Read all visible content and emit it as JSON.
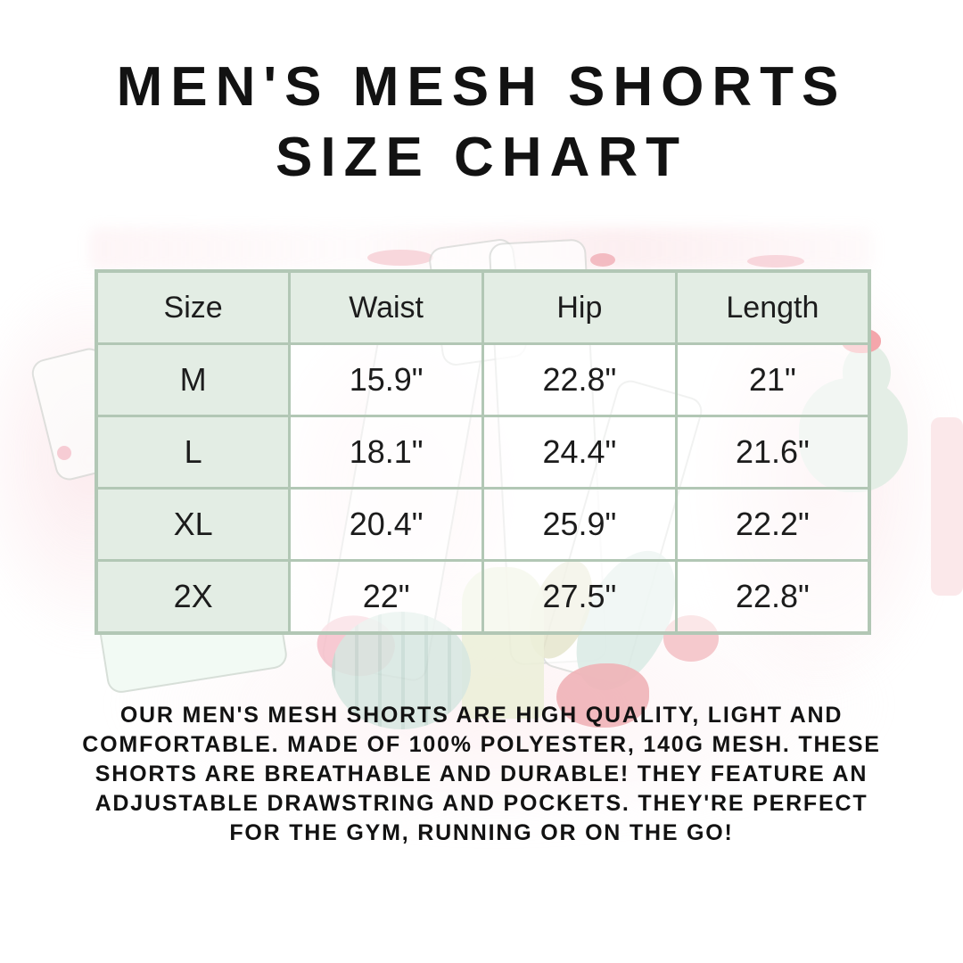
{
  "title": {
    "line1": "MEN'S MESH SHORTS",
    "line2": "SIZE CHART"
  },
  "chart_data": {
    "type": "table",
    "title": "MEN'S MESH SHORTS SIZE CHART",
    "columns": [
      "Size",
      "Waist",
      "Hip",
      "Length"
    ],
    "rows": [
      [
        "M",
        "15.9\"",
        "22.8\"",
        "21\""
      ],
      [
        "L",
        "18.1\"",
        "24.4\"",
        "21.6\""
      ],
      [
        "XL",
        "20.4\"",
        "25.9\"",
        "22.2\""
      ],
      [
        "2X",
        "22\"",
        "27.5\"",
        "22.8\""
      ]
    ],
    "units": "inches",
    "layout": "header row shaded green, size column shaded green, 4 equal columns"
  },
  "description": {
    "lines": [
      "OUR MEN'S MESH SHORTS ARE HIGH QUALITY, LIGHT AND",
      "COMFORTABLE. MADE OF 100% POLYESTER, 140G MESH. THESE",
      "SHORTS ARE BREATHABLE AND DURABLE! THEY FEATURE AN",
      "ADJUSTABLE DRAWSTRING AND POCKETS. THEY'RE PERFECT",
      "FOR THE GYM, RUNNING OR ON THE GO!"
    ],
    "full_text": "OUR MEN'S MESH SHORTS ARE HIGH QUALITY, LIGHT AND COMFORTABLE. MADE OF 100% POLYESTER, 140G MESH. THESE SHORTS ARE BREATHABLE AND DURABLE! THEY FEATURE AN ADJUSTABLE DRAWSTRING AND POCKETS. THEY'RE PERFECT FOR THE GYM, RUNNING OR ON THE GO!"
  },
  "colors": {
    "table_border": "#b2c7b5",
    "header_cell_fill": "#e3ede4",
    "text": "#121212",
    "watercolor_pink": "#f9dde2",
    "watercolor_green": "#e4eee6",
    "watercolor_teal": "#d7e7e1",
    "flower_red": "#efb2b7",
    "background": "#ffffff"
  }
}
